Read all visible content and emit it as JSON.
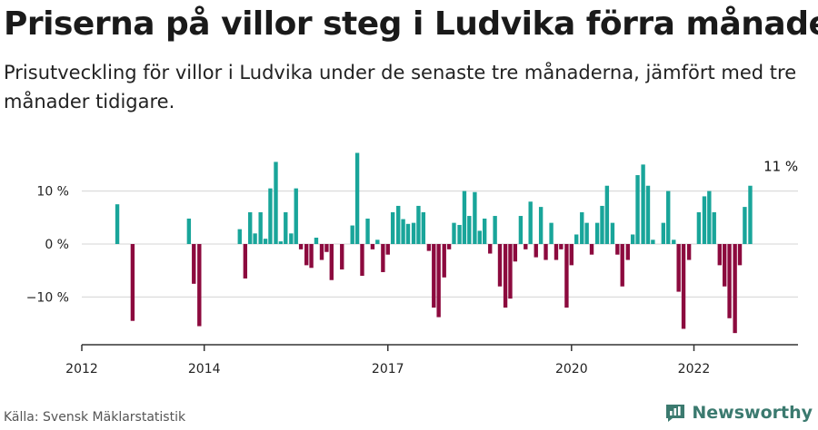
{
  "title": "Priserna på villor steg i Ludvika förra månaden",
  "subtitle": "Prisutveckling för villor i Ludvika under de senaste tre månaderna, jämfört med tre månader tidigare.",
  "source": "Källa: Svensk Mäklarstatistik",
  "brand": "Newsworthy",
  "colors": {
    "positive": "#19a59a",
    "negative": "#8c0a3e",
    "grid": "#dddddd",
    "axis": "#333333",
    "brand": "#3b7a6f"
  },
  "chart_data": {
    "type": "bar",
    "ylim": [
      -19,
      19
    ],
    "yticks": [
      -10,
      0,
      10
    ],
    "ytick_labels": [
      "−10 %",
      "0 %",
      "10 %"
    ],
    "xlim": [
      2012,
      2023.7
    ],
    "xticks": [
      2012,
      2014,
      2017,
      2020,
      2022
    ],
    "xtick_labels": [
      "2012",
      "2014",
      "2017",
      "2020",
      "2022"
    ],
    "grid": true,
    "annotation": {
      "text": "11 %",
      "x": 2023.42,
      "value": 11
    },
    "series": [
      {
        "values": [
          [
            2012.58,
            7.5
          ],
          [
            2012.83,
            -14.5
          ],
          [
            2013.75,
            4.8
          ],
          [
            2013.83,
            -7.5
          ],
          [
            2013.92,
            -15.5
          ],
          [
            2014.58,
            2.8
          ],
          [
            2014.67,
            -6.5
          ],
          [
            2014.75,
            6.0
          ],
          [
            2014.83,
            2.0
          ],
          [
            2014.92,
            6.0
          ],
          [
            2015.0,
            1.0
          ],
          [
            2015.08,
            10.5
          ],
          [
            2015.17,
            15.5
          ],
          [
            2015.25,
            0.5
          ],
          [
            2015.33,
            6.0
          ],
          [
            2015.42,
            2.0
          ],
          [
            2015.5,
            10.5
          ],
          [
            2015.58,
            -1.0
          ],
          [
            2015.67,
            -4.0
          ],
          [
            2015.75,
            -4.5
          ],
          [
            2015.83,
            1.2
          ],
          [
            2015.92,
            -3.0
          ],
          [
            2016.0,
            -1.5
          ],
          [
            2016.08,
            -6.8
          ],
          [
            2016.25,
            -4.8
          ],
          [
            2016.42,
            3.5
          ],
          [
            2016.5,
            17.2
          ],
          [
            2016.58,
            -6.0
          ],
          [
            2016.67,
            4.8
          ],
          [
            2016.75,
            -1.0
          ],
          [
            2016.83,
            0.8
          ],
          [
            2016.92,
            -5.3
          ],
          [
            2017.0,
            -2.0
          ],
          [
            2017.08,
            6.0
          ],
          [
            2017.17,
            7.2
          ],
          [
            2017.25,
            4.7
          ],
          [
            2017.33,
            3.8
          ],
          [
            2017.42,
            4.0
          ],
          [
            2017.5,
            7.2
          ],
          [
            2017.58,
            6.0
          ],
          [
            2017.67,
            -1.3
          ],
          [
            2017.75,
            -12.0
          ],
          [
            2017.83,
            -13.8
          ],
          [
            2017.92,
            -6.3
          ],
          [
            2018.0,
            -1.0
          ],
          [
            2018.08,
            4.0
          ],
          [
            2018.17,
            3.6
          ],
          [
            2018.25,
            10.0
          ],
          [
            2018.33,
            5.3
          ],
          [
            2018.42,
            9.8
          ],
          [
            2018.5,
            2.5
          ],
          [
            2018.58,
            4.8
          ],
          [
            2018.67,
            -1.8
          ],
          [
            2018.75,
            5.3
          ],
          [
            2018.83,
            -8.0
          ],
          [
            2018.92,
            -12.0
          ],
          [
            2019.0,
            -10.3
          ],
          [
            2019.08,
            -3.3
          ],
          [
            2019.17,
            5.3
          ],
          [
            2019.25,
            -1.0
          ],
          [
            2019.33,
            8.0
          ],
          [
            2019.42,
            -2.5
          ],
          [
            2019.5,
            7.0
          ],
          [
            2019.58,
            -3.0
          ],
          [
            2019.67,
            4.0
          ],
          [
            2019.75,
            -3.0
          ],
          [
            2019.83,
            -1.0
          ],
          [
            2019.92,
            -12.0
          ],
          [
            2020.0,
            -4.0
          ],
          [
            2020.08,
            1.8
          ],
          [
            2020.17,
            6.0
          ],
          [
            2020.25,
            4.0
          ],
          [
            2020.33,
            -2.0
          ],
          [
            2020.42,
            4.0
          ],
          [
            2020.5,
            7.2
          ],
          [
            2020.58,
            11.0
          ],
          [
            2020.67,
            4.0
          ],
          [
            2020.75,
            -2.0
          ],
          [
            2020.83,
            -8.0
          ],
          [
            2020.92,
            -3.0
          ],
          [
            2021.0,
            1.8
          ],
          [
            2021.08,
            13.0
          ],
          [
            2021.17,
            15.0
          ],
          [
            2021.25,
            11.0
          ],
          [
            2021.33,
            0.8
          ],
          [
            2021.5,
            4.0
          ],
          [
            2021.58,
            10.0
          ],
          [
            2021.67,
            0.8
          ],
          [
            2021.75,
            -9.0
          ],
          [
            2021.83,
            -16.0
          ],
          [
            2021.92,
            -3.0
          ],
          [
            2022.08,
            6.0
          ],
          [
            2022.17,
            9.0
          ],
          [
            2022.25,
            10.0
          ],
          [
            2022.33,
            6.0
          ],
          [
            2022.42,
            -4.0
          ],
          [
            2022.5,
            -8.0
          ],
          [
            2022.58,
            -14.0
          ],
          [
            2022.67,
            -16.8
          ],
          [
            2022.75,
            -4.0
          ],
          [
            2022.83,
            7.0
          ],
          [
            2022.92,
            11.0
          ]
        ]
      }
    ]
  }
}
